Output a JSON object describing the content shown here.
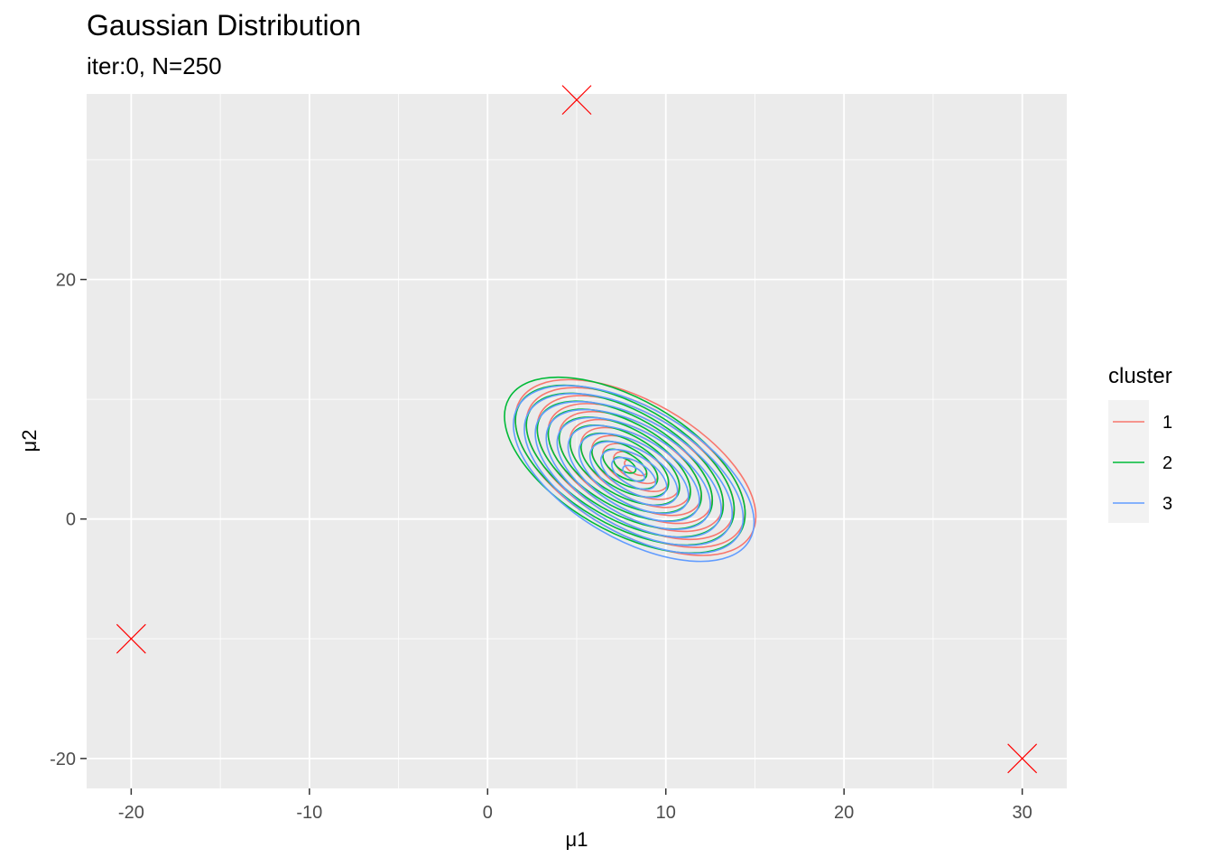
{
  "chart_data": {
    "type": "contour",
    "title": "Gaussian Distribution",
    "subtitle": "iter:0, N=250",
    "xlabel": "μ1",
    "ylabel": "μ2",
    "xlim": [
      -22.5,
      32.5
    ],
    "ylim": [
      -22.5,
      35.5
    ],
    "x_ticks": [
      -20,
      -10,
      0,
      10,
      20,
      30
    ],
    "x_tick_labels": [
      "-20",
      "-10",
      "0",
      "10",
      "20",
      "30"
    ],
    "y_ticks": [
      -20,
      0,
      20
    ],
    "y_tick_labels": [
      "-20",
      "0",
      "20"
    ],
    "grid": true,
    "legend": {
      "title": "cluster",
      "placement": "right",
      "entries": [
        {
          "label": "1",
          "color": "#F8766D"
        },
        {
          "label": "2",
          "color": "#00BA38"
        },
        {
          "label": "3",
          "color": "#619CFF"
        }
      ]
    },
    "series": [
      {
        "name": "1",
        "color": "#F8766D",
        "center": [
          8.3,
          4.3
        ],
        "outer_semi_axes": [
          7.5,
          5.5
        ],
        "angle_deg": -30,
        "levels": 11
      },
      {
        "name": "2",
        "color": "#00BA38",
        "center": [
          7.7,
          4.5
        ],
        "outer_semi_axes": [
          7.5,
          5.5
        ],
        "angle_deg": -30,
        "levels": 11
      },
      {
        "name": "3",
        "color": "#619CFF",
        "center": [
          8.2,
          3.8
        ],
        "outer_semi_axes": [
          7.5,
          5.5
        ],
        "angle_deg": -30,
        "levels": 11
      }
    ],
    "markers": [
      {
        "x": -20,
        "y": -10,
        "color": "#FF0000",
        "shape": "x"
      },
      {
        "x": 5,
        "y": 35,
        "color": "#FF0000",
        "shape": "x"
      },
      {
        "x": 30,
        "y": -20,
        "color": "#FF0000",
        "shape": "x"
      }
    ]
  }
}
